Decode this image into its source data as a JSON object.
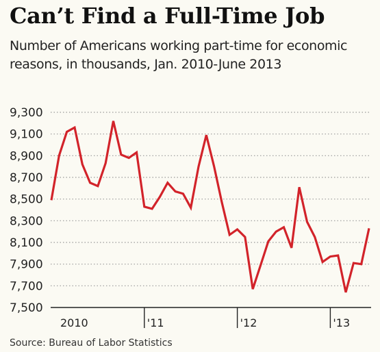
{
  "title": "Can’t Find a Full-Time Job",
  "subtitle": "Number of Americans working part-time for economic reasons, in thousands, Jan. 2010-June 2013",
  "source": "Source: Bureau of Labor Statistics",
  "colors": {
    "line": "#d2232a",
    "grid": "#999999",
    "background": "#fbfaf3"
  },
  "chart_data": {
    "type": "line",
    "title": "Can’t Find a Full-Time Job",
    "subtitle": "Number of Americans working part-time for economic reasons, in thousands, Jan. 2010-June 2013",
    "xlabel": "",
    "ylabel": "",
    "ylim": [
      7500,
      9300
    ],
    "grid": "horizontal dotted",
    "yticks": [
      9300,
      9100,
      8900,
      8700,
      8500,
      8300,
      8100,
      7900,
      7700,
      7500
    ],
    "ytick_labels": [
      "9,300",
      "9,100",
      "8,900",
      "8,700",
      "8,500",
      "8,300",
      "8,100",
      "7,900",
      "7,700",
      "7,500"
    ],
    "xticks": [
      {
        "label": "2010",
        "x": "2010-01"
      },
      {
        "label": "'11",
        "x": "2011-01"
      },
      {
        "label": "'12",
        "x": "2012-01"
      },
      {
        "label": "'13",
        "x": "2013-01"
      }
    ],
    "x": [
      "2010-01",
      "2010-02",
      "2010-03",
      "2010-04",
      "2010-05",
      "2010-06",
      "2010-07",
      "2010-08",
      "2010-09",
      "2010-10",
      "2010-11",
      "2010-12",
      "2011-01",
      "2011-02",
      "2011-03",
      "2011-04",
      "2011-05",
      "2011-06",
      "2011-07",
      "2011-08",
      "2011-09",
      "2011-10",
      "2011-11",
      "2011-12",
      "2012-01",
      "2012-02",
      "2012-03",
      "2012-04",
      "2012-05",
      "2012-06",
      "2012-07",
      "2012-08",
      "2012-09",
      "2012-10",
      "2012-11",
      "2012-12",
      "2013-01",
      "2013-02",
      "2013-03",
      "2013-04",
      "2013-05",
      "2013-06"
    ],
    "values": [
      8490,
      8900,
      9120,
      9160,
      8820,
      8650,
      8620,
      8830,
      9220,
      8910,
      8880,
      8930,
      8430,
      8410,
      8520,
      8650,
      8570,
      8550,
      8420,
      8800,
      9090,
      8800,
      8470,
      8170,
      8220,
      8150,
      7670,
      7890,
      8110,
      8200,
      8240,
      8050,
      8610,
      8290,
      8150,
      7920,
      7970,
      7980,
      7640,
      7910,
      7900,
      8230
    ]
  }
}
